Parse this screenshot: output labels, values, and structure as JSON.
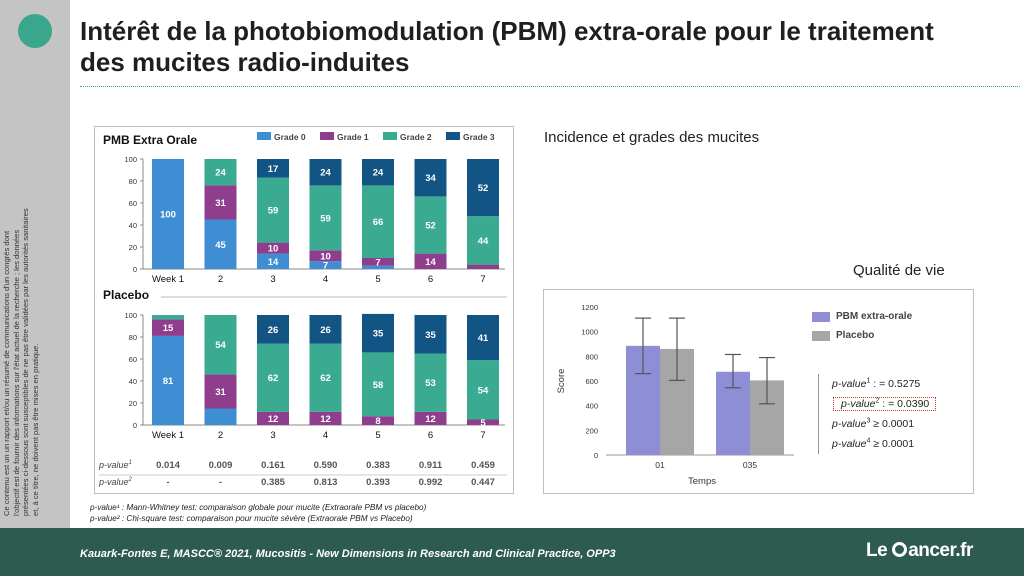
{
  "slide": {
    "title": "Intérêt de la photobiomodulation (PBM) extra-orale pour le traitement des mucites radio-induites",
    "disclaimer": "Ce contenu est un un rapport et/ou un résumé de communications d'un congrès dont l'objectif est de fournir des informations sur l'état actuel de la recherche ; les données présentées ci-dessous sont susceptibles de ne pas être validées par les autorités sanitaires et, à ce titre, ne doivent pas être mises en pratique.",
    "section_incidence": "Incidence et grades des mucites",
    "section_qol": "Qualité de vie",
    "footnote1": "p-value¹ : Mann-Whitney test: comparaison globale pour mucite (Extraorale PBM vs placebo)",
    "footnote2": "p-value² : Chi-square test: comparaison pour mucite sévère (Extraorale PBM vs Placebo)",
    "citation": "Kauark-Fontes E, MASCC® 2021, Mucositis - New Dimensions in Research and Clinical Practice, OPP3",
    "brand_pre": "Le",
    "brand_post": "ancer.fr"
  },
  "chart_data": [
    {
      "type": "bar",
      "stacked": true,
      "title": "PMB Extra Orale",
      "categories": [
        "Week 1",
        "2",
        "3",
        "4",
        "5",
        "6",
        "7"
      ],
      "ylim": [
        0,
        100
      ],
      "yticks": [
        0,
        20,
        40,
        60,
        80,
        100
      ],
      "legend": [
        "Grade 0",
        "Grade 1",
        "Grade 2",
        "Grade 3"
      ],
      "colors": [
        "#3f8ed4",
        "#8e3e8c",
        "#3aaa90",
        "#125484"
      ],
      "series": [
        {
          "name": "Grade 0",
          "values": [
            100,
            45,
            14,
            7,
            3,
            0,
            0
          ]
        },
        {
          "name": "Grade 1",
          "values": [
            0,
            31,
            10,
            10,
            7,
            14,
            4
          ]
        },
        {
          "name": "Grade 2",
          "values": [
            0,
            24,
            59,
            59,
            66,
            52,
            44
          ]
        },
        {
          "name": "Grade 3",
          "values": [
            0,
            0,
            17,
            24,
            24,
            34,
            52
          ]
        }
      ],
      "labels": [
        [
          "100",
          "",
          "",
          ""
        ],
        [
          "45",
          "31",
          "24",
          ""
        ],
        [
          "14",
          "10",
          "59",
          "17"
        ],
        [
          "7",
          "10",
          "59",
          "24"
        ],
        [
          "",
          "7",
          "66",
          "24"
        ],
        [
          "",
          "14",
          "52",
          "34"
        ],
        [
          "",
          "",
          "44",
          "52"
        ]
      ]
    },
    {
      "type": "bar",
      "stacked": true,
      "title": "Placebo",
      "categories": [
        "Week 1",
        "2",
        "3",
        "4",
        "5",
        "6",
        "7"
      ],
      "ylim": [
        0,
        100
      ],
      "yticks": [
        0,
        20,
        40,
        60,
        80,
        100
      ],
      "colors": [
        "#3f8ed4",
        "#8e3e8c",
        "#3aaa90",
        "#125484"
      ],
      "series": [
        {
          "name": "Grade 0",
          "values": [
            81,
            15,
            0,
            0,
            0,
            0,
            0
          ]
        },
        {
          "name": "Grade 1",
          "values": [
            15,
            31,
            12,
            12,
            8,
            12,
            5
          ]
        },
        {
          "name": "Grade 2",
          "values": [
            4,
            54,
            62,
            62,
            58,
            53,
            54
          ]
        },
        {
          "name": "Grade 3",
          "values": [
            0,
            0,
            26,
            26,
            35,
            35,
            41
          ]
        }
      ],
      "labels": [
        [
          "81",
          "15",
          "",
          ""
        ],
        [
          "",
          "31",
          "54",
          ""
        ],
        [
          "",
          "12",
          "62",
          "26"
        ],
        [
          "",
          "12",
          "62",
          "26"
        ],
        [
          "",
          "8",
          "58",
          "35"
        ],
        [
          "",
          "12",
          "53",
          "35"
        ],
        [
          "",
          "5",
          "54",
          "41"
        ]
      ],
      "pvalue_rows": [
        {
          "label": "p-value",
          "sup": "1",
          "values": [
            "0.014",
            "0.009",
            "0.161",
            "0.590",
            "0.383",
            "0.911",
            "0.459"
          ]
        },
        {
          "label": "p-value",
          "sup": "2",
          "values": [
            "-",
            "-",
            "0.385",
            "0.813",
            "0.393",
            "0.992",
            "0.447"
          ]
        }
      ]
    },
    {
      "type": "bar",
      "title": "",
      "xlabel": "Temps",
      "ylabel": "Score",
      "categories": [
        "01",
        "035"
      ],
      "ylim": [
        0,
        1200
      ],
      "yticks": [
        0,
        200,
        400,
        600,
        800,
        1000,
        1200
      ],
      "series": [
        {
          "name": "PBM extra-orale",
          "color": "#8e8ed6",
          "values": [
            885,
            675
          ],
          "err_low": [
            660,
            545
          ],
          "err_high": [
            1110,
            815
          ]
        },
        {
          "name": "Placebo",
          "color": "#a6a6a6",
          "values": [
            860,
            605
          ],
          "err_low": [
            605,
            415
          ],
          "err_high": [
            1110,
            790
          ]
        }
      ],
      "pvalues": [
        {
          "label": "p-value",
          "sup": "1",
          "text": " : = 0.5275",
          "highlight": false
        },
        {
          "label": "p-value",
          "sup": "2",
          "text": " : = 0.0390",
          "highlight": true
        },
        {
          "label": "p-value",
          "sup": "3",
          "text": " ≥ 0.0001",
          "highlight": false
        },
        {
          "label": "p-value",
          "sup": "4",
          "text": " ≥ 0.0001",
          "highlight": false
        }
      ]
    }
  ]
}
